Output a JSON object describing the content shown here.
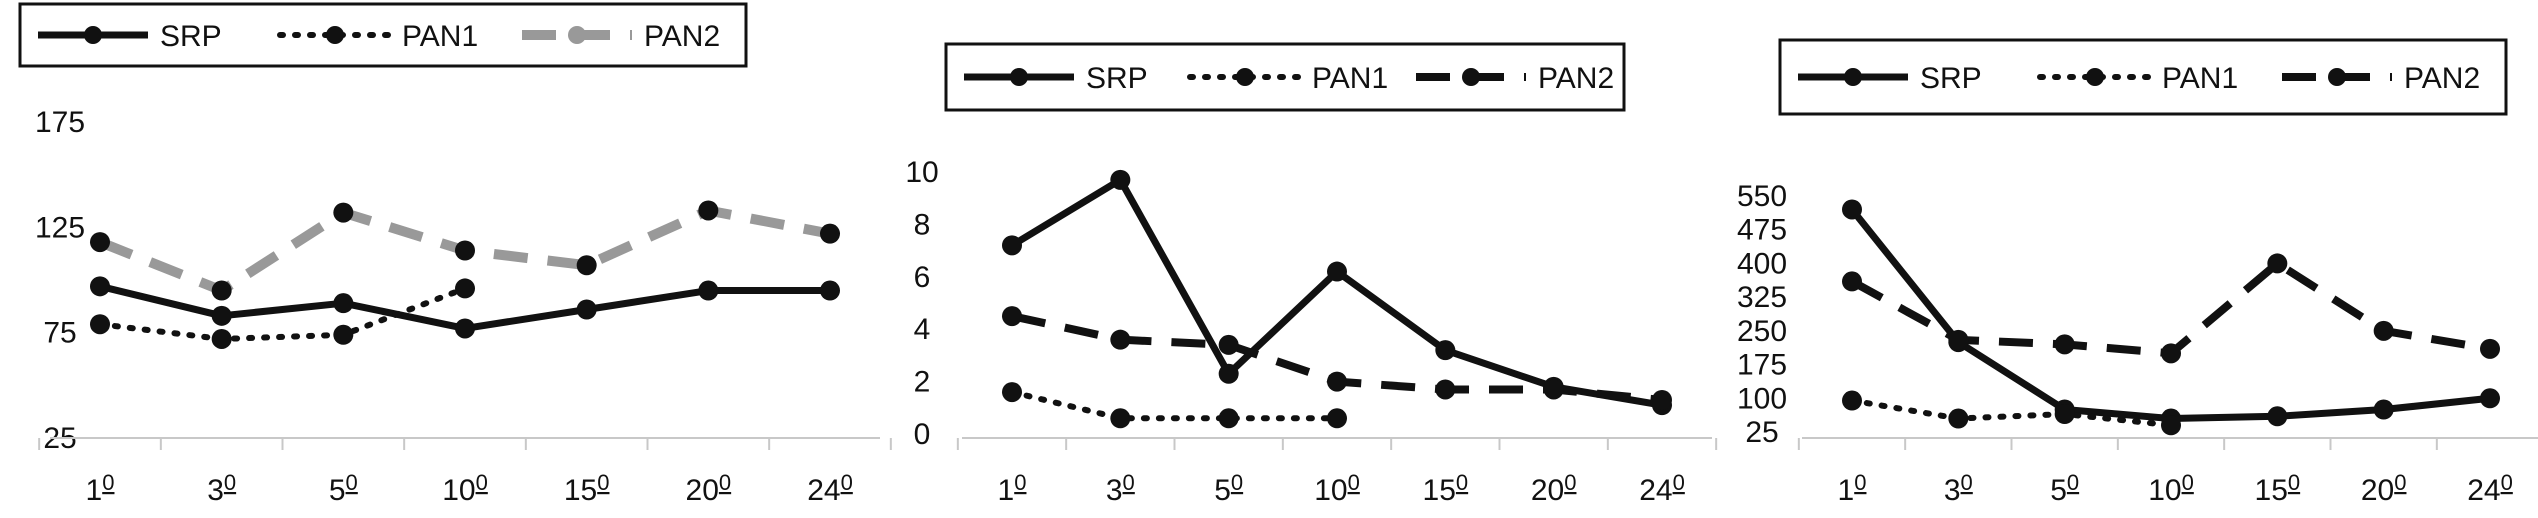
{
  "chart_data": [
    {
      "type": "line",
      "categories": [
        "1",
        "3",
        "5",
        "10",
        "15",
        "20",
        "24"
      ],
      "category_suffix": "0",
      "yticks": [
        25,
        75,
        125,
        175
      ],
      "ylim": [
        25,
        175
      ],
      "legend": "top-left",
      "grid": false,
      "series": [
        {
          "name": "SRP",
          "style": "solid",
          "color": "#111111",
          "values": [
            97,
            83,
            89,
            77,
            86,
            95,
            95
          ]
        },
        {
          "name": "PAN1",
          "style": "dotted",
          "color": "#111111",
          "values": [
            79,
            72,
            74,
            96,
            null,
            null,
            null
          ]
        },
        {
          "name": "PAN2",
          "style": "dashed-gray",
          "color": "#999999",
          "values": [
            118,
            95,
            132,
            114,
            107,
            133,
            122
          ]
        }
      ]
    },
    {
      "type": "line",
      "categories": [
        "1",
        "3",
        "5",
        "10",
        "15",
        "20",
        "24"
      ],
      "category_suffix": "0",
      "yticks": [
        0,
        2,
        4,
        6,
        8,
        10
      ],
      "ylim": [
        0,
        10
      ],
      "legend": "top-center",
      "grid": false,
      "series": [
        {
          "name": "SRP",
          "style": "solid",
          "color": "#111111",
          "values": [
            7.2,
            9.7,
            2.3,
            6.2,
            3.2,
            1.8,
            1.1
          ]
        },
        {
          "name": "PAN1",
          "style": "dotted",
          "color": "#111111",
          "values": [
            1.6,
            0.6,
            0.6,
            0.6,
            null,
            null,
            null
          ]
        },
        {
          "name": "PAN2",
          "style": "dashed",
          "color": "#111111",
          "values": [
            4.5,
            3.6,
            3.4,
            2.0,
            1.7,
            1.7,
            1.3
          ]
        }
      ]
    },
    {
      "type": "line",
      "categories": [
        "1",
        "3",
        "5",
        "10",
        "15",
        "20",
        "24"
      ],
      "category_suffix": "0",
      "yticks": [
        25,
        100,
        175,
        250,
        325,
        400,
        475,
        550
      ],
      "ylim": [
        25,
        550
      ],
      "legend": "top-center",
      "grid": false,
      "series": [
        {
          "name": "SRP",
          "style": "solid",
          "color": "#111111",
          "values": [
            520,
            225,
            75,
            55,
            60,
            75,
            100
          ]
        },
        {
          "name": "PAN1",
          "style": "dotted",
          "color": "#111111",
          "values": [
            95,
            55,
            65,
            40,
            null,
            null,
            null
          ]
        },
        {
          "name": "PAN2",
          "style": "dashed",
          "color": "#111111",
          "values": [
            360,
            230,
            220,
            200,
            400,
            250,
            210
          ]
        }
      ]
    }
  ]
}
